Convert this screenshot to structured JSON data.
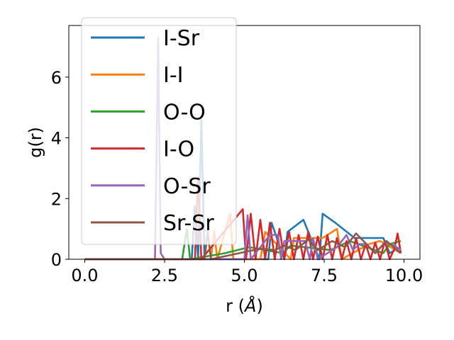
{
  "chart_data": {
    "type": "line",
    "title": "",
    "xlabel": "r (Å)",
    "xlabel_prefix": "r (",
    "xlabel_unit": "Å",
    "xlabel_suffix": ")",
    "ylabel": "g(r)",
    "xlim": [
      -0.5,
      10.5
    ],
    "ylim": [
      0,
      7.7
    ],
    "xticks": [
      0.0,
      2.5,
      5.0,
      7.5,
      10.0
    ],
    "xtick_labels": [
      "0.0",
      "2.5",
      "5.0",
      "7.5",
      "10.0"
    ],
    "yticks": [
      0,
      2,
      4,
      6
    ],
    "ytick_labels": [
      "0",
      "2",
      "4",
      "6"
    ],
    "grid": false,
    "legend_position": "upper-left",
    "series": [
      {
        "name": "I-Sr",
        "color": "#1f77b4",
        "x": [
          0,
          3.35,
          3.45,
          3.55,
          3.65,
          3.75,
          4.45,
          5.75,
          5.85,
          6.25,
          6.35,
          6.85,
          7.35,
          7.45,
          7.85,
          8.45,
          9.35,
          9.55,
          9.9
        ],
        "y": [
          0,
          0,
          1.75,
          0,
          4.6,
          0,
          0,
          0,
          1.2,
          0,
          0.9,
          1.3,
          0,
          1.5,
          1.2,
          0.7,
          0.7,
          0.2,
          0.4
        ]
      },
      {
        "name": "I-I",
        "color": "#ff7f0e",
        "x": [
          0,
          3.95,
          4.05,
          4.15,
          4.55,
          4.65,
          5.5,
          5.65,
          6.45,
          6.55,
          7.45,
          7.9,
          8.05,
          8.9,
          9.25,
          9.9
        ],
        "y": [
          0,
          0,
          0.95,
          0,
          1.5,
          0,
          0,
          0.9,
          0,
          0.7,
          0.7,
          1.0,
          0,
          0.5,
          0.6,
          0.2
        ]
      },
      {
        "name": "O-O",
        "color": "#2ca02c",
        "x": [
          0,
          3.05,
          3.2,
          3.3,
          4.4,
          5.15,
          6.2,
          6.45,
          7.7,
          8.3,
          9.35,
          9.55,
          9.9
        ],
        "y": [
          0,
          0,
          1.0,
          0,
          0.2,
          0.4,
          0.2,
          0.45,
          0.3,
          0.6,
          0.2,
          0.5,
          0.6
        ]
      },
      {
        "name": "I-O",
        "color": "#d62728",
        "x": [
          0,
          3.45,
          3.55,
          3.65,
          4.95,
          5.05,
          5.2,
          5.35,
          5.5,
          5.65,
          5.8,
          5.95,
          6.1,
          6.25,
          6.4,
          6.55,
          6.7,
          6.85,
          7.0,
          7.15,
          7.3,
          7.45,
          7.6,
          7.75,
          7.9,
          8.05,
          8.2,
          8.35,
          8.5,
          8.65,
          8.8,
          8.95,
          9.1,
          9.25,
          9.4,
          9.55,
          9.7,
          9.8,
          9.9
        ],
        "y": [
          0,
          0,
          2.7,
          0,
          1.65,
          0,
          1.5,
          0,
          1.3,
          0,
          1.2,
          0,
          1.0,
          0,
          0.9,
          0,
          0.8,
          0,
          0.9,
          0,
          0.75,
          0,
          0.8,
          0,
          0.7,
          0,
          0.6,
          0,
          0.7,
          0,
          0.5,
          0,
          0.55,
          0,
          0.6,
          0,
          0.35,
          0.85,
          0.2
        ]
      },
      {
        "name": "O-Sr",
        "color": "#9467bd",
        "x": [
          0,
          2.2,
          2.3,
          2.38,
          2.5,
          5.0,
          5.1,
          5.2,
          5.8,
          6.05,
          6.15,
          6.25,
          6.9,
          7.05,
          7.15,
          7.3,
          7.9,
          8.2,
          8.4,
          8.6,
          8.8,
          9.1,
          9.4,
          9.7,
          9.9
        ],
        "y": [
          0,
          0,
          7.3,
          0.2,
          0,
          0,
          1.45,
          0,
          0.8,
          0.8,
          0,
          0.6,
          0.6,
          0,
          0.7,
          0,
          0.4,
          0.8,
          0.3,
          0.5,
          0.5,
          0.2,
          0.55,
          0.45,
          0.3
        ]
      },
      {
        "name": "Sr-Sr",
        "color": "#8c564b",
        "x": [
          0,
          3.75,
          3.85,
          3.95,
          5.5,
          5.95,
          6.25,
          6.6,
          7.0,
          7.3,
          7.75,
          8.15,
          8.5,
          9.1,
          9.45,
          9.9
        ],
        "y": [
          0,
          0,
          0.9,
          0,
          0.35,
          0.3,
          0.45,
          0.3,
          0.65,
          0.3,
          0.6,
          0.4,
          0.85,
          0.2,
          0.6,
          0.2
        ]
      }
    ]
  }
}
